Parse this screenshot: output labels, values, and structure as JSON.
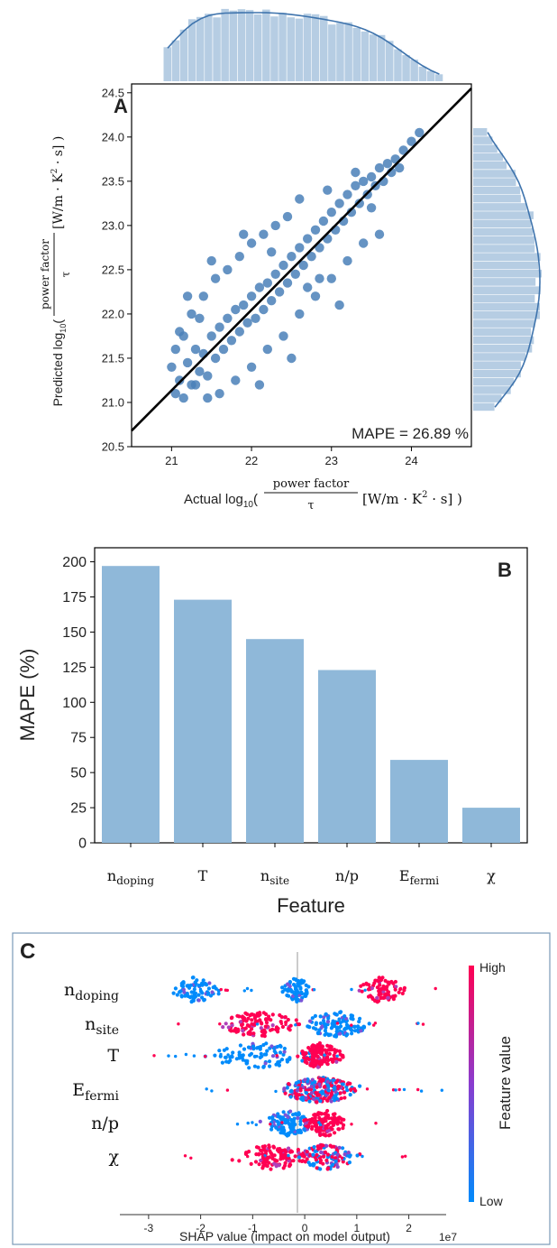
{
  "chart_data": [
    {
      "id": "A",
      "type": "scatter",
      "panel_label": "A",
      "xlim": [
        20.5,
        24.75
      ],
      "ylim": [
        20.5,
        24.6
      ],
      "xticks": [
        21,
        22,
        23,
        24
      ],
      "yticks": [
        20.5,
        21.0,
        21.5,
        22.0,
        22.5,
        23.0,
        23.5,
        24.0,
        24.5
      ],
      "xlabel": {
        "prefix": "Actual log",
        "sub": "10",
        "num": "power factor",
        "den": "τ",
        "unit_pre": "[W/m · K",
        "unit_sup": "2",
        "unit_post": " · s] )"
      },
      "ylabel": {
        "prefix": "Predicted log",
        "sub": "10",
        "num": "power factor",
        "den": "τ",
        "unit_pre": "[W/m · K",
        "unit_sup": "2",
        "unit_post": " · s] )"
      },
      "annotation": "MAPE = 26.89 %",
      "fit_line": [
        [
          20.5,
          20.68
        ],
        [
          24.75,
          24.55
        ]
      ],
      "points": [
        [
          21.05,
          21.1
        ],
        [
          21.1,
          21.25
        ],
        [
          21.15,
          21.05
        ],
        [
          21.2,
          21.45
        ],
        [
          21.25,
          21.2
        ],
        [
          21.3,
          21.6
        ],
        [
          21.35,
          21.35
        ],
        [
          21.4,
          21.55
        ],
        [
          21.45,
          21.3
        ],
        [
          21.5,
          21.75
        ],
        [
          21.55,
          21.5
        ],
        [
          21.6,
          21.85
        ],
        [
          21.65,
          21.6
        ],
        [
          21.7,
          21.95
        ],
        [
          21.75,
          21.7
        ],
        [
          21.8,
          22.05
        ],
        [
          21.85,
          21.8
        ],
        [
          21.9,
          22.1
        ],
        [
          21.95,
          21.9
        ],
        [
          22.0,
          22.2
        ],
        [
          22.05,
          21.95
        ],
        [
          22.1,
          22.3
        ],
        [
          22.15,
          22.05
        ],
        [
          22.2,
          22.35
        ],
        [
          22.25,
          22.15
        ],
        [
          22.3,
          22.45
        ],
        [
          22.35,
          22.25
        ],
        [
          22.4,
          22.55
        ],
        [
          22.45,
          22.35
        ],
        [
          22.5,
          22.65
        ],
        [
          22.55,
          22.45
        ],
        [
          22.6,
          22.75
        ],
        [
          22.65,
          22.55
        ],
        [
          22.7,
          22.85
        ],
        [
          22.75,
          22.65
        ],
        [
          22.8,
          22.95
        ],
        [
          22.85,
          22.75
        ],
        [
          22.9,
          23.05
        ],
        [
          22.95,
          22.85
        ],
        [
          23.0,
          23.15
        ],
        [
          23.05,
          22.95
        ],
        [
          23.1,
          23.25
        ],
        [
          23.15,
          23.05
        ],
        [
          23.2,
          23.35
        ],
        [
          23.25,
          23.15
        ],
        [
          23.3,
          23.45
        ],
        [
          23.35,
          23.25
        ],
        [
          23.4,
          23.5
        ],
        [
          23.45,
          23.35
        ],
        [
          23.5,
          23.55
        ],
        [
          23.55,
          23.45
        ],
        [
          23.6,
          23.65
        ],
        [
          23.65,
          23.5
        ],
        [
          23.7,
          23.7
        ],
        [
          23.75,
          23.6
        ],
        [
          23.8,
          23.75
        ],
        [
          23.85,
          23.65
        ],
        [
          23.9,
          23.85
        ],
        [
          24.0,
          23.95
        ],
        [
          24.1,
          24.05
        ],
        [
          21.1,
          21.8
        ],
        [
          21.25,
          22.0
        ],
        [
          21.4,
          22.2
        ],
        [
          21.55,
          22.4
        ],
        [
          21.7,
          22.5
        ],
        [
          21.85,
          22.65
        ],
        [
          22.0,
          22.8
        ],
        [
          22.15,
          22.9
        ],
        [
          22.3,
          23.0
        ],
        [
          22.45,
          23.1
        ],
        [
          21.6,
          21.1
        ],
        [
          21.8,
          21.25
        ],
        [
          22.0,
          21.4
        ],
        [
          22.2,
          21.6
        ],
        [
          22.4,
          21.75
        ],
        [
          22.6,
          22.0
        ],
        [
          22.8,
          22.2
        ],
        [
          23.0,
          22.4
        ],
        [
          23.2,
          22.6
        ],
        [
          23.4,
          22.8
        ],
        [
          21.2,
          22.2
        ],
        [
          21.5,
          22.6
        ],
        [
          21.9,
          22.9
        ],
        [
          22.6,
          23.3
        ],
        [
          22.1,
          21.2
        ],
        [
          22.5,
          21.5
        ],
        [
          23.1,
          22.1
        ],
        [
          23.6,
          22.9
        ],
        [
          21.35,
          21.95
        ],
        [
          22.85,
          22.4
        ],
        [
          21.0,
          21.4
        ],
        [
          21.05,
          21.6
        ],
        [
          21.15,
          21.75
        ],
        [
          21.3,
          21.2
        ],
        [
          21.45,
          21.05
        ],
        [
          22.25,
          22.7
        ],
        [
          22.7,
          22.3
        ],
        [
          23.3,
          23.6
        ],
        [
          23.5,
          23.2
        ],
        [
          22.95,
          23.4
        ]
      ]
    },
    {
      "id": "B",
      "type": "bar",
      "panel_label": "B",
      "categories": [
        {
          "base": "n",
          "sub": "doping"
        },
        {
          "base": "T",
          "sub": ""
        },
        {
          "base": "n",
          "sub": "site"
        },
        {
          "base": "n/p",
          "sub": ""
        },
        {
          "base": "E",
          "sub": "fermi"
        },
        {
          "base": "χ",
          "sub": ""
        }
      ],
      "values": [
        197,
        173,
        145,
        123,
        59,
        25
      ],
      "ylim": [
        0,
        210
      ],
      "yticks": [
        0,
        25,
        50,
        75,
        100,
        125,
        150,
        175,
        200
      ],
      "xlabel": "Feature",
      "ylabel": "MAPE (%)",
      "bar_color": "#8fb8d9"
    },
    {
      "id": "C",
      "type": "scatter",
      "subtype": "beeswarm",
      "panel_label": "C",
      "features": [
        {
          "base": "n",
          "sub": "doping"
        },
        {
          "base": "n",
          "sub": "site"
        },
        {
          "base": "T",
          "sub": ""
        },
        {
          "base": "E",
          "sub": "fermi"
        },
        {
          "base": "n/p",
          "sub": ""
        },
        {
          "base": "χ",
          "sub": ""
        }
      ],
      "xlim": [
        -3.5,
        2.7
      ],
      "xticks": [
        -3,
        -2,
        -1,
        0,
        1,
        2
      ],
      "xlabel": "SHAP value (impact on model output)",
      "x_multiplier": "1e7",
      "colorbar": {
        "title": "Feature value",
        "high": "High",
        "low": "Low",
        "high_color": "#ff0052",
        "low_color": "#008bfb"
      },
      "distributions": [
        {
          "range": [
            -3.0,
            2.6
          ],
          "clusters": [
            {
              "center": -2.1,
              "spread": 0.45,
              "weight": 0.35,
              "value": "low"
            },
            {
              "center": -0.15,
              "spread": 0.25,
              "weight": 0.3,
              "value": "low"
            },
            {
              "center": 1.5,
              "spread": 0.45,
              "weight": 0.35,
              "value": "high"
            }
          ]
        },
        {
          "range": [
            -2.9,
            2.3
          ],
          "clusters": [
            {
              "center": -0.9,
              "spread": 0.8,
              "weight": 0.5,
              "value": "high"
            },
            {
              "center": 0.6,
              "spread": 0.7,
              "weight": 0.5,
              "value": "low"
            }
          ]
        },
        {
          "range": [
            -3.2,
            1.5
          ],
          "clusters": [
            {
              "center": -0.9,
              "spread": 1.0,
              "weight": 0.4,
              "value": "low"
            },
            {
              "center": 0.3,
              "spread": 0.4,
              "weight": 0.6,
              "value": "high"
            }
          ]
        },
        {
          "range": [
            -2.3,
            2.7
          ],
          "clusters": [
            {
              "center": 0.3,
              "spread": 0.8,
              "weight": 1.0,
              "value": "mixed"
            }
          ]
        },
        {
          "range": [
            -1.5,
            1.4
          ],
          "clusters": [
            {
              "center": -0.3,
              "spread": 0.5,
              "weight": 0.45,
              "value": "low"
            },
            {
              "center": 0.4,
              "spread": 0.4,
              "weight": 0.55,
              "value": "high"
            }
          ]
        },
        {
          "range": [
            -2.3,
            2.1
          ],
          "clusters": [
            {
              "center": -0.6,
              "spread": 0.7,
              "weight": 0.5,
              "value": "high"
            },
            {
              "center": 0.4,
              "spread": 0.6,
              "weight": 0.5,
              "value": "mixed"
            }
          ]
        }
      ]
    }
  ]
}
